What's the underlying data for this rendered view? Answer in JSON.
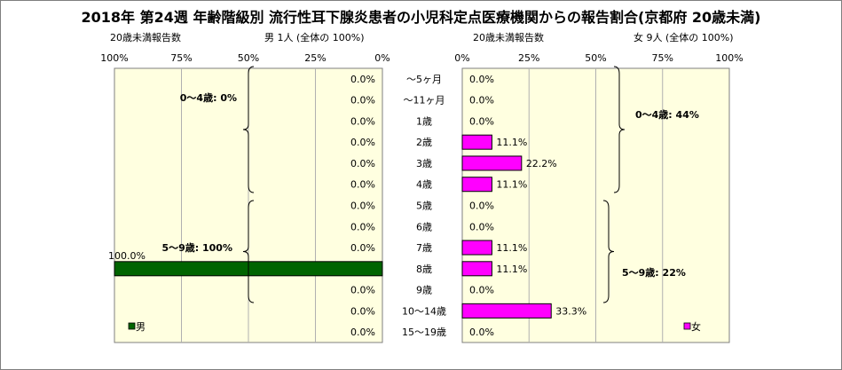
{
  "title": "2018年 第24週 年齢階級別 流行性耳下腺炎患者の小児科定点医療機関からの報告割合(京都府 20歳未満)",
  "left_panel": {
    "header_label": "20歳未満報告数",
    "summary": "男 1人 (全体の 100%)",
    "legend": "男",
    "color": "#006400",
    "groups": [
      {
        "label": "0～4歳: 0%"
      },
      {
        "label": "5～9歳: 100%"
      }
    ]
  },
  "right_panel": {
    "header_label": "20歳未満報告数",
    "summary": "女 9人 (全体の 100%)",
    "legend": "女",
    "color": "#ff00ff",
    "groups": [
      {
        "label": "0～4歳: 44%"
      },
      {
        "label": "5～9歳: 22%"
      }
    ]
  },
  "chart_data": {
    "type": "bar",
    "orientation": "horizontal-population-pyramid",
    "categories": [
      "～5ヶ月",
      "～11ヶ月",
      "1歳",
      "2歳",
      "3歳",
      "4歳",
      "5歳",
      "6歳",
      "7歳",
      "8歳",
      "9歳",
      "10～14歳",
      "15～19歳"
    ],
    "series": [
      {
        "name": "男",
        "values": [
          0,
          0,
          0,
          0,
          0,
          0,
          0,
          0,
          0,
          100,
          0,
          0,
          0
        ]
      },
      {
        "name": "女",
        "values": [
          0,
          0,
          0,
          11.1,
          22.2,
          11.1,
          0,
          0,
          11.1,
          11.1,
          0,
          33.3,
          0
        ]
      }
    ],
    "value_labels": {
      "男": [
        "0.0%",
        "0.0%",
        "0.0%",
        "0.0%",
        "0.0%",
        "0.0%",
        "0.0%",
        "0.0%",
        "0.0%",
        "100.0%",
        "0.0%",
        "0.0%",
        "0.0%"
      ],
      "女": [
        "0.0%",
        "0.0%",
        "0.0%",
        "11.1%",
        "22.2%",
        "11.1%",
        "0.0%",
        "0.0%",
        "11.1%",
        "11.1%",
        "0.0%",
        "33.3%",
        "0.0%"
      ]
    },
    "left_ticks": [
      "100%",
      "75%",
      "50%",
      "25%",
      "0%"
    ],
    "right_ticks": [
      "0%",
      "25%",
      "50%",
      "75%",
      "100%"
    ],
    "xlim": [
      0,
      100
    ],
    "grid": true,
    "legend_position": "bottom"
  }
}
